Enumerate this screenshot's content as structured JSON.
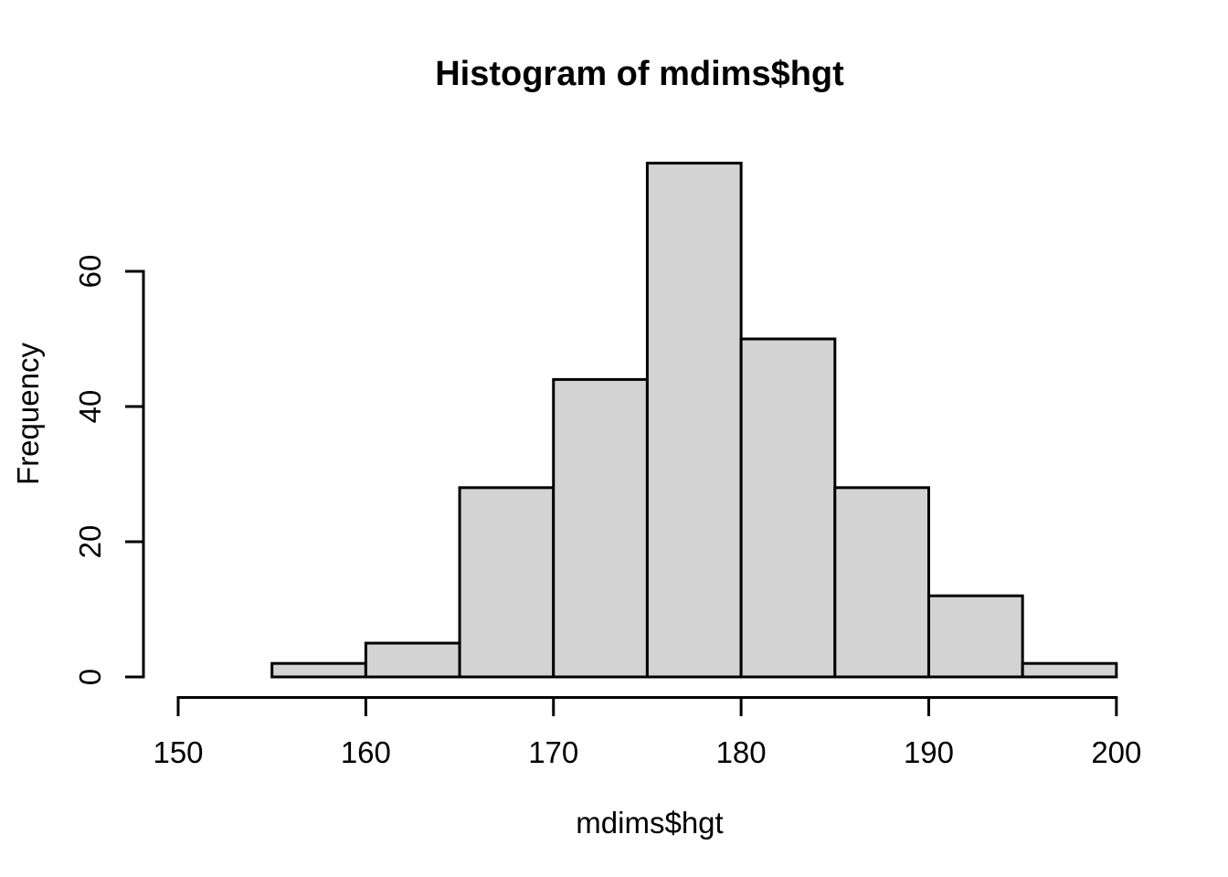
{
  "chart_data": {
    "type": "bar",
    "subtype": "histogram",
    "title": "Histogram of mdims$hgt",
    "xlabel": "mdims$hgt",
    "ylabel": "Frequency",
    "bin_breaks": [
      155,
      160,
      165,
      170,
      175,
      180,
      185,
      190,
      195,
      200
    ],
    "counts": [
      2,
      5,
      28,
      44,
      76,
      50,
      28,
      12,
      2
    ],
    "x_ticks": [
      150,
      160,
      170,
      180,
      190,
      200
    ],
    "y_ticks": [
      0,
      20,
      40,
      60
    ],
    "xlim": [
      150,
      200
    ],
    "ylim": [
      0,
      76
    ],
    "grid": false,
    "legend": "none",
    "colors": {
      "bar_fill": "#d3d3d3",
      "bar_border": "#000000",
      "axis": "#000000",
      "text": "#000000",
      "background": "#ffffff"
    }
  }
}
